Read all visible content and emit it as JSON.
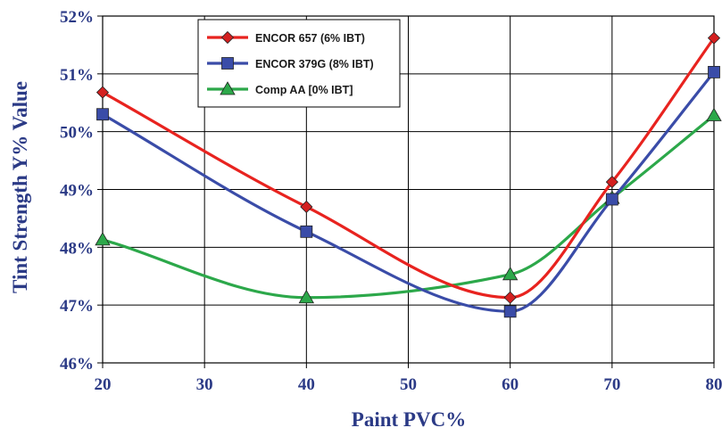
{
  "chart_data": {
    "type": "line",
    "title": "",
    "xlabel": "Paint PVC%",
    "ylabel": "Tint Strength  Y% Value",
    "xlim": [
      20,
      80
    ],
    "ylim": [
      46,
      52
    ],
    "x_ticks": [
      20,
      30,
      40,
      50,
      60,
      70,
      80
    ],
    "x_tick_labels": [
      "20",
      "30",
      "40",
      "50",
      "60",
      "70",
      "80"
    ],
    "y_ticks": [
      46,
      47,
      48,
      49,
      50,
      51,
      52
    ],
    "y_tick_labels": [
      "46%",
      "47%",
      "48%",
      "49%",
      "50%",
      "51%",
      "52%"
    ],
    "grid": true,
    "legend_position": "top-left",
    "series": [
      {
        "name": "ENCOR 657 (6% IBT)",
        "color": "#e8231f",
        "marker": "diamond",
        "marker_color": "#d42020",
        "x": [
          20,
          40,
          60,
          70,
          80
        ],
        "y": [
          50.68,
          48.7,
          47.13,
          49.13,
          51.62
        ]
      },
      {
        "name": "ENCOR 379G (8% IBT)",
        "color": "#3a4ca8",
        "marker": "square",
        "marker_color": "#3a4ca8",
        "x": [
          20,
          40,
          60,
          70,
          80
        ],
        "y": [
          50.3,
          48.27,
          46.89,
          48.83,
          51.03
        ]
      },
      {
        "name": "Comp AA [0% IBT]",
        "color": "#2ca84a",
        "marker": "triangle",
        "marker_color": "#2ca84a",
        "x": [
          20,
          40,
          60,
          70,
          80
        ],
        "y": [
          48.13,
          47.13,
          47.53,
          48.85,
          50.28
        ]
      }
    ]
  }
}
